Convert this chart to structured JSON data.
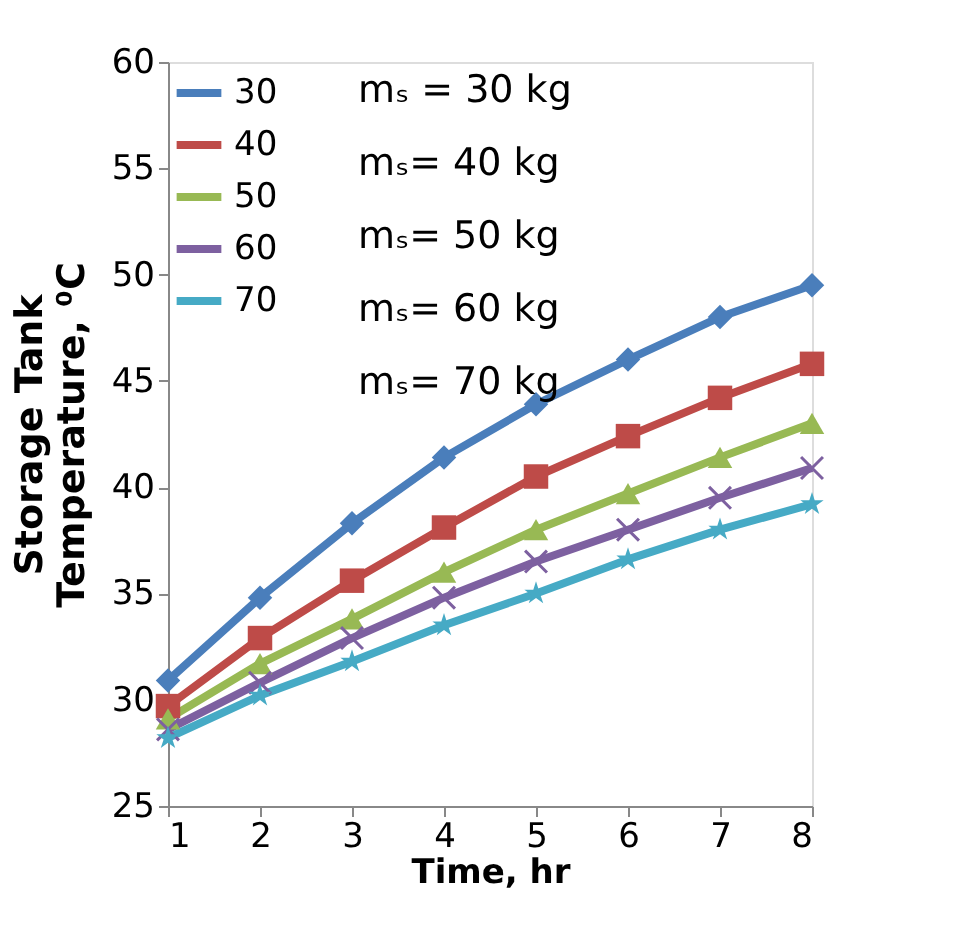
{
  "chart_data": {
    "type": "line",
    "xlabel": "Time, hr",
    "ylabel": "Storage Tank\nTemperature, ⁰C",
    "x": [
      1,
      2,
      3,
      4,
      5,
      6,
      7,
      8
    ],
    "xlim": [
      1,
      8
    ],
    "xticks": [
      1,
      2,
      3,
      4,
      5,
      6,
      7,
      8
    ],
    "ylim": [
      25,
      60
    ],
    "yticks": [
      25,
      30,
      35,
      40,
      45,
      50,
      55,
      60
    ],
    "grid": false,
    "legend": "top left",
    "line_style": "solid",
    "series": [
      {
        "name": "30",
        "color": "#4a7ebb",
        "marker": "diamond",
        "values": [
          30.9,
          34.8,
          38.3,
          41.4,
          43.9,
          46.0,
          48.0,
          49.5
        ]
      },
      {
        "name": "40",
        "color": "#be4b48",
        "marker": "square",
        "values": [
          29.7,
          32.9,
          35.6,
          38.1,
          40.5,
          42.4,
          44.2,
          45.8
        ]
      },
      {
        "name": "50",
        "color": "#98b954",
        "marker": "triangle",
        "values": [
          29.1,
          31.7,
          33.8,
          36.0,
          38.0,
          39.7,
          41.4,
          43.0
        ]
      },
      {
        "name": "60",
        "color": "#7d60a0",
        "marker": "cross",
        "values": [
          28.6,
          30.8,
          32.9,
          34.8,
          36.5,
          38.0,
          39.5,
          40.9
        ]
      },
      {
        "name": "70",
        "color": "#46aac5",
        "marker": "star",
        "values": [
          28.2,
          30.2,
          31.8,
          33.5,
          35.0,
          36.6,
          38.0,
          39.2
        ]
      }
    ],
    "annotations": [
      "mₛ = 30 kg",
      "mₛ= 40 kg",
      "mₛ= 50 kg",
      "mₛ= 60 kg",
      "mₛ= 70 kg"
    ]
  }
}
